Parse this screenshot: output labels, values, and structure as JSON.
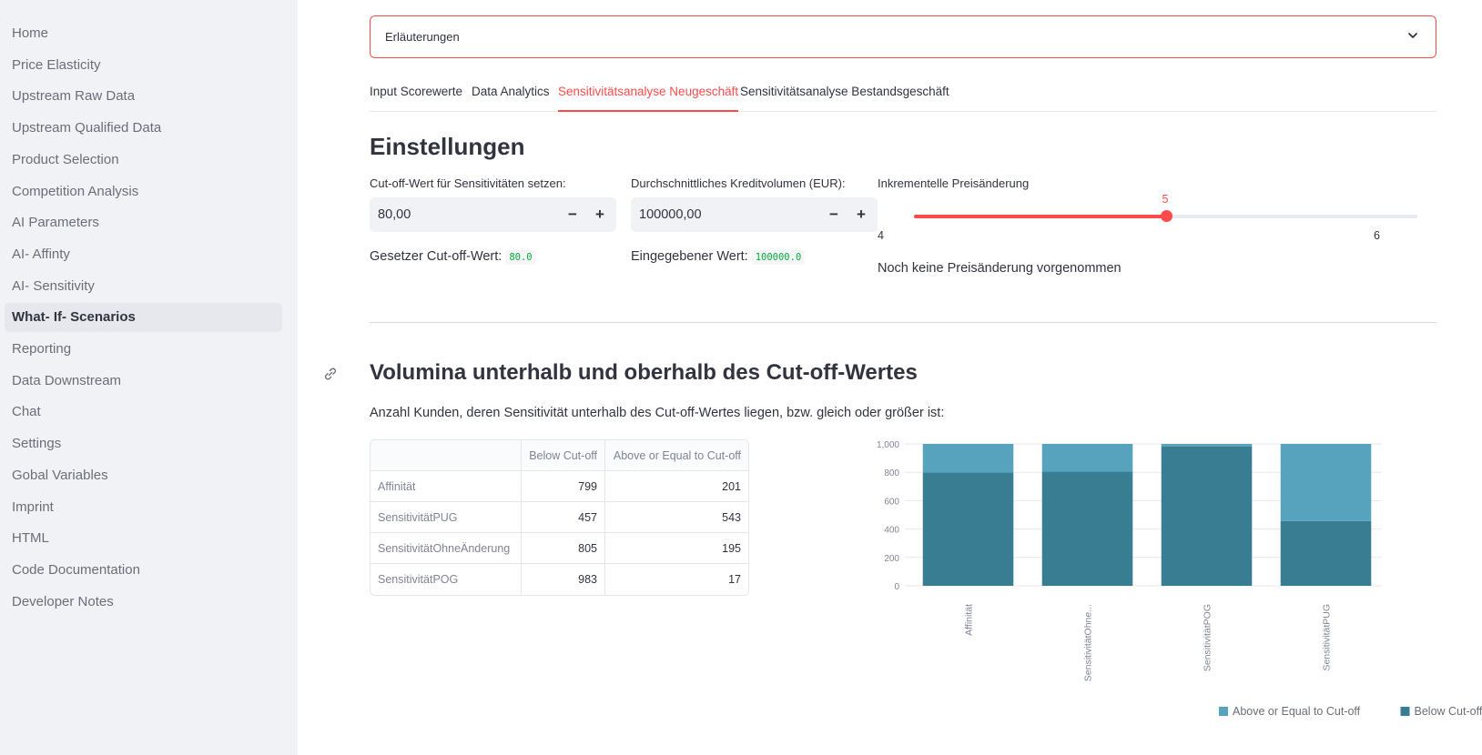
{
  "sidebar": {
    "items": [
      {
        "label": "Home",
        "active": false
      },
      {
        "label": "Price Elasticity",
        "active": false
      },
      {
        "label": "Upstream Raw Data",
        "active": false
      },
      {
        "label": "Upstream Qualified Data",
        "active": false
      },
      {
        "label": "Product Selection",
        "active": false
      },
      {
        "label": "Competition Analysis",
        "active": false
      },
      {
        "label": "AI Parameters",
        "active": false
      },
      {
        "label": "AI- Affinty",
        "active": false
      },
      {
        "label": "AI- Sensitivity",
        "active": false
      },
      {
        "label": "What- If- Scenarios",
        "active": true
      },
      {
        "label": "Reporting",
        "active": false
      },
      {
        "label": "Data Downstream",
        "active": false
      },
      {
        "label": "Chat",
        "active": false
      },
      {
        "label": "Settings",
        "active": false
      },
      {
        "label": "Gobal Variables",
        "active": false
      },
      {
        "label": "Imprint",
        "active": false
      },
      {
        "label": "HTML",
        "active": false
      },
      {
        "label": "Code Documentation",
        "active": false
      },
      {
        "label": "Developer Notes",
        "active": false
      }
    ]
  },
  "expander": {
    "label": "Erläuterungen",
    "icon": "chevron-down-icon"
  },
  "tabs": [
    {
      "label": "Input Scorewerte",
      "active": false
    },
    {
      "label": "Data Analytics",
      "active": false
    },
    {
      "label": "Sensitivitätsanalyse Neugeschäft",
      "active": true
    },
    {
      "label": "Sensitivitätsanalyse Bestandsgeschäft",
      "active": false
    }
  ],
  "settings": {
    "heading": "Einstellungen",
    "cutoff": {
      "label": "Cut-off-Wert für Sensitivitäten setzen:",
      "value": "80,00",
      "minus": "−",
      "plus": "+",
      "info_text": "Gesetzer Cut-off-Wert:",
      "info_code": "80.0"
    },
    "volume": {
      "label": "Durchschnittliches Kreditvolumen (EUR):",
      "value": "100000,00",
      "minus": "−",
      "plus": "+",
      "info_text": "Eingegebener Wert:",
      "info_code": "100000.0"
    },
    "slider": {
      "label": "Inkrementelle Preisänderung",
      "value": 5,
      "value_label": "5",
      "min": 4,
      "max": 6,
      "min_label": "4",
      "max_label": "6",
      "note": "Noch keine Preisänderung vorgenommen"
    }
  },
  "volumes": {
    "heading": "Volumina unterhalb und oberhalb des Cut-off-Wertes",
    "description": "Anzahl Kunden, deren Sensitivität unterhalb des Cut-off-Wertes liegen, bzw. gleich oder größer ist:",
    "table": {
      "columns": [
        "",
        "Below Cut-off",
        "Above or Equal to Cut-off"
      ],
      "rows": [
        {
          "index": "Affinität",
          "below": "799",
          "above": "201"
        },
        {
          "index": "SensitivitätPUG",
          "below": "457",
          "above": "543"
        },
        {
          "index": "SensitivitätOhneÄnderung",
          "below": "805",
          "above": "195"
        },
        {
          "index": "SensitivitätPOG",
          "below": "983",
          "above": "17"
        }
      ]
    }
  },
  "colors": {
    "accent": "#ff4b4b",
    "above": "#57a3bd",
    "below": "#397d93"
  },
  "chart_data": {
    "type": "bar",
    "stacked": true,
    "categories": [
      "Affinität",
      "SensitivitätOhne...",
      "SensitivitätPOG",
      "SensitivitätPUG"
    ],
    "series": [
      {
        "name": "Below Cut-off",
        "values": [
          799,
          805,
          983,
          457
        ],
        "color": "#397d93"
      },
      {
        "name": "Above or Equal to Cut-off",
        "values": [
          201,
          195,
          17,
          543
        ],
        "color": "#57a3bd"
      }
    ],
    "ylim": [
      0,
      1000
    ],
    "yticks": [
      0,
      200,
      400,
      600,
      800,
      1000
    ],
    "ytick_labels": [
      "0",
      "200",
      "400",
      "600",
      "800",
      "1,000"
    ],
    "legend": [
      "Above or Equal to Cut-off",
      "Below Cut-off"
    ],
    "legend_position": "bottom",
    "grid": true
  }
}
